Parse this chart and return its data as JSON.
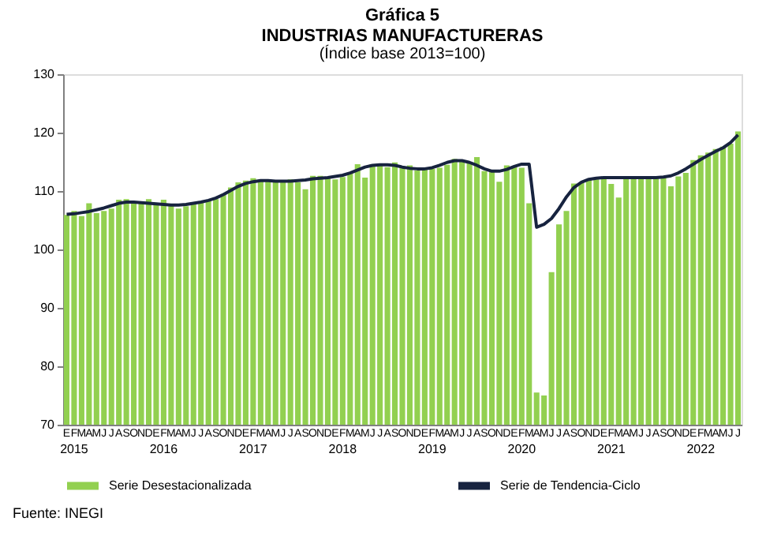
{
  "chart_data": {
    "type": "bar",
    "title": [
      "Gráfica 5",
      "INDUSTRIAS MANUFACTURERAS"
    ],
    "subtitle": "(Índice base 2013=100)",
    "categories": [
      "E",
      "F",
      "M",
      "A",
      "M",
      "J",
      "J",
      "A",
      "S",
      "O",
      "N",
      "D",
      "E",
      "F",
      "M",
      "A",
      "M",
      "J",
      "J",
      "A",
      "S",
      "O",
      "N",
      "D",
      "E",
      "F",
      "M",
      "A",
      "M",
      "J",
      "J",
      "A",
      "S",
      "O",
      "N",
      "D",
      "E",
      "F",
      "M",
      "A",
      "M",
      "J",
      "J",
      "A",
      "S",
      "O",
      "N",
      "D",
      "E",
      "F",
      "M",
      "A",
      "M",
      "J",
      "J",
      "A",
      "S",
      "O",
      "N",
      "D",
      "E",
      "F",
      "M",
      "A",
      "M",
      "J",
      "J",
      "A",
      "S",
      "O",
      "N",
      "D",
      "E",
      "F",
      "M",
      "A",
      "M",
      "J",
      "J",
      "A",
      "S",
      "O",
      "N",
      "D",
      "E",
      "F",
      "M",
      "A",
      "M",
      "J",
      "J"
    ],
    "series": [
      {
        "name": "Serie Desestacionalizada",
        "color": "#92d050",
        "values": [
          105.9,
          106.6,
          105.7,
          107.9,
          106.2,
          106.6,
          107.0,
          108.5,
          108.6,
          107.9,
          108.0,
          108.6,
          107.8,
          108.5,
          107.6,
          107.0,
          107.4,
          107.8,
          108.0,
          108.3,
          108.6,
          109.5,
          110.6,
          111.5,
          111.8,
          112.2,
          111.7,
          111.8,
          111.7,
          111.9,
          112.0,
          111.5,
          110.3,
          112.6,
          112.6,
          112.3,
          112.0,
          112.4,
          113.1,
          114.6,
          112.3,
          114.6,
          114.4,
          114.1,
          114.9,
          114.2,
          114.4,
          113.5,
          114.0,
          113.8,
          114.0,
          114.5,
          115.5,
          115.2,
          114.8,
          115.8,
          113.4,
          113.4,
          111.6,
          114.4,
          114.3,
          114.0,
          107.9,
          75.5,
          75.0,
          96.1,
          104.3,
          106.6,
          111.3,
          111.4,
          111.9,
          112.0,
          112.3,
          111.2,
          108.9,
          112.3,
          112.5,
          112.4,
          112.4,
          112.3,
          112.5,
          110.8,
          112.5,
          113.1,
          115.3,
          116.1,
          116.6,
          117.2,
          117.6,
          118.1,
          120.2
        ]
      },
      {
        "name": "Serie de Tendencia-Ciclo",
        "type": "line",
        "color": "#17233f",
        "values": [
          106.0,
          106.1,
          106.3,
          106.5,
          106.8,
          107.1,
          107.5,
          107.9,
          108.1,
          108.1,
          108.0,
          107.9,
          107.8,
          107.7,
          107.6,
          107.6,
          107.7,
          107.9,
          108.1,
          108.4,
          108.8,
          109.4,
          110.1,
          110.8,
          111.3,
          111.6,
          111.8,
          111.8,
          111.7,
          111.7,
          111.7,
          111.8,
          111.9,
          112.1,
          112.2,
          112.3,
          112.5,
          112.7,
          113.1,
          113.6,
          114.1,
          114.4,
          114.5,
          114.5,
          114.4,
          114.1,
          113.9,
          113.8,
          113.8,
          114.0,
          114.4,
          114.9,
          115.2,
          115.2,
          114.9,
          114.4,
          113.8,
          113.4,
          113.4,
          113.7,
          114.2,
          114.6,
          114.6,
          103.8,
          104.3,
          105.3,
          107.0,
          109.0,
          110.6,
          111.5,
          112.0,
          112.2,
          112.3,
          112.3,
          112.3,
          112.3,
          112.3,
          112.3,
          112.3,
          112.3,
          112.4,
          112.6,
          113.1,
          113.8,
          114.6,
          115.4,
          116.1,
          116.8,
          117.4,
          118.3,
          119.6
        ]
      }
    ],
    "ylim": [
      70,
      130
    ],
    "yticks": [
      70,
      80,
      90,
      100,
      110,
      120,
      130
    ],
    "grid": false,
    "legend": "bottom",
    "annotations": [
      "2015",
      "2016",
      "2017",
      "2018",
      "2019",
      "2020",
      "2021",
      "2022",
      "Fuente: INEGI"
    ]
  }
}
